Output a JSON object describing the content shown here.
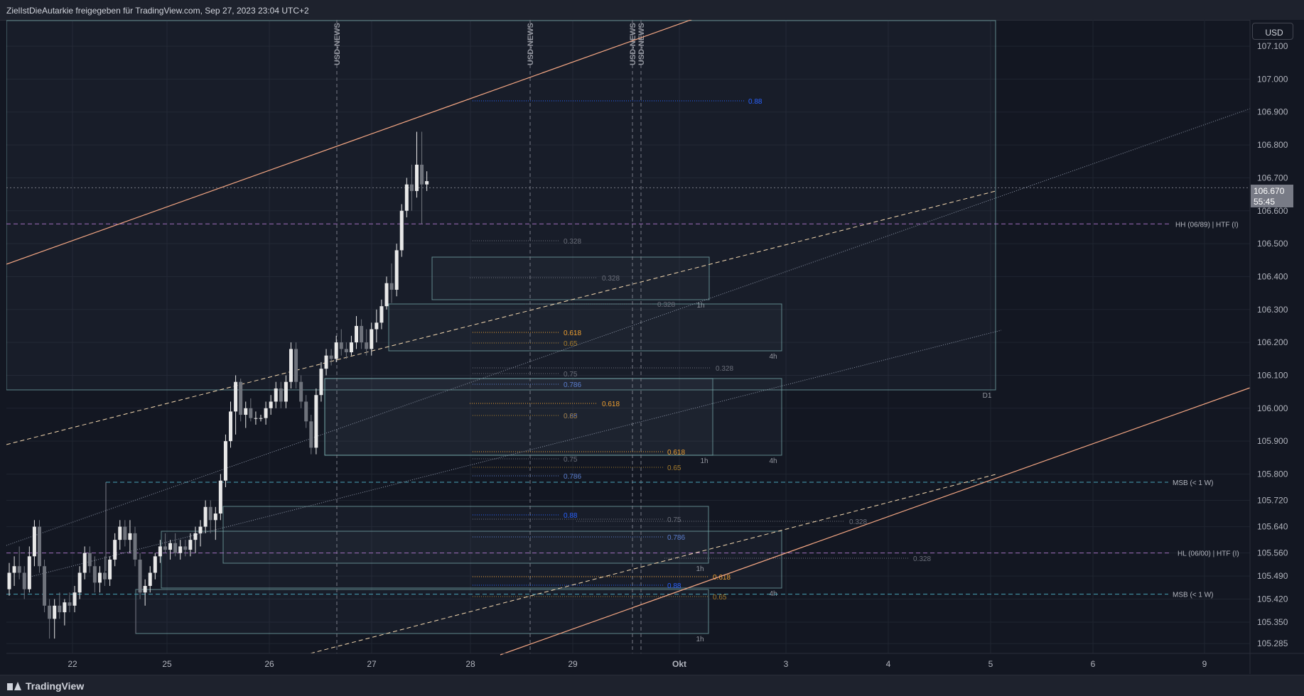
{
  "header": {
    "title": "ZielIstDieAutarkie freigegeben für TradingView.com, Sep 27, 2023 23:04 UTC+2"
  },
  "footer": {
    "brand": "TradingView"
  },
  "currency_button": "USD",
  "last_price": {
    "price": "106.670",
    "countdown": "55:45"
  },
  "colors": {
    "background": "#131722",
    "candle_up": "#e8e8e8",
    "candle_down": "#6f737c",
    "channel": "#f3a683",
    "fib_blue": "#2962ff",
    "fib_orange": "#f0a030",
    "zone": "#7fb6b6",
    "level_pink": "#a26fbf",
    "msb": "#4aa3b8"
  },
  "chart_data": {
    "type": "candlestick",
    "x_ticks": [
      "22",
      "25",
      "26",
      "27",
      "28",
      "29",
      "Okt",
      "3",
      "4",
      "5",
      "6",
      "9"
    ],
    "y_ticks": [
      "107.100",
      "107.000",
      "106.900",
      "106.800",
      "106.700",
      "106.600",
      "106.500",
      "106.400",
      "106.300",
      "106.200",
      "106.100",
      "106.000",
      "105.900",
      "105.800",
      "105.720",
      "105.640",
      "105.560",
      "105.490",
      "105.420",
      "105.350",
      "105.285"
    ],
    "y_range": [
      105.255,
      107.18
    ],
    "news_markers": [
      "USD-NEWS",
      "USD-NEWS",
      "USD-NEWS",
      "USD-NEWS"
    ],
    "horizontal_levels": [
      {
        "label": "HH (06/89) | HTF (I)",
        "price": 106.56
      },
      {
        "label": "HL (06/00) | HTF (I)",
        "price": 105.56
      },
      {
        "label": "MSB (< 1 W)",
        "price": 105.775
      },
      {
        "label": "MSB (< 1 W)",
        "price": 105.435
      }
    ],
    "zone_timeframes": [
      "D1",
      "1h",
      "4h",
      "1h",
      "4h",
      "1h",
      "4h",
      "1h"
    ],
    "fib_labels": [
      "0.88",
      "0.328",
      "0.328",
      "0.328",
      "0.618",
      "0.65",
      "0.328",
      "0.75",
      "0.786",
      "0.618",
      "0.88",
      "0.65",
      "0.618",
      "0.75",
      "0.65",
      "0.786",
      "0.88",
      "0.75",
      "0.328",
      "0.786",
      "0.328",
      "0.618",
      "0.88",
      "0.65"
    ],
    "candles": [
      {
        "o": 105.45,
        "h": 105.53,
        "l": 105.43,
        "c": 105.5
      },
      {
        "o": 105.5,
        "h": 105.55,
        "l": 105.46,
        "c": 105.52
      },
      {
        "o": 105.52,
        "h": 105.58,
        "l": 105.48,
        "c": 105.5
      },
      {
        "o": 105.5,
        "h": 105.52,
        "l": 105.42,
        "c": 105.45
      },
      {
        "o": 105.45,
        "h": 105.58,
        "l": 105.44,
        "c": 105.55
      },
      {
        "o": 105.55,
        "h": 105.66,
        "l": 105.52,
        "c": 105.64
      },
      {
        "o": 105.64,
        "h": 105.66,
        "l": 105.5,
        "c": 105.52
      },
      {
        "o": 105.52,
        "h": 105.54,
        "l": 105.38,
        "c": 105.4
      },
      {
        "o": 105.4,
        "h": 105.42,
        "l": 105.3,
        "c": 105.36
      },
      {
        "o": 105.36,
        "h": 105.42,
        "l": 105.3,
        "c": 105.4
      },
      {
        "o": 105.4,
        "h": 105.44,
        "l": 105.36,
        "c": 105.38
      },
      {
        "o": 105.38,
        "h": 105.42,
        "l": 105.34,
        "c": 105.41
      },
      {
        "o": 105.41,
        "h": 105.44,
        "l": 105.38,
        "c": 105.4
      },
      {
        "o": 105.4,
        "h": 105.46,
        "l": 105.38,
        "c": 105.44
      },
      {
        "o": 105.44,
        "h": 105.52,
        "l": 105.42,
        "c": 105.5
      },
      {
        "o": 105.5,
        "h": 105.58,
        "l": 105.48,
        "c": 105.56
      },
      {
        "o": 105.56,
        "h": 105.58,
        "l": 105.5,
        "c": 105.52
      },
      {
        "o": 105.52,
        "h": 105.55,
        "l": 105.44,
        "c": 105.47
      },
      {
        "o": 105.47,
        "h": 105.52,
        "l": 105.44,
        "c": 105.5
      },
      {
        "o": 105.5,
        "h": 105.55,
        "l": 105.46,
        "c": 105.48
      },
      {
        "o": 105.48,
        "h": 105.55,
        "l": 105.46,
        "c": 105.54
      },
      {
        "o": 105.54,
        "h": 105.62,
        "l": 105.52,
        "c": 105.6
      },
      {
        "o": 105.6,
        "h": 105.66,
        "l": 105.57,
        "c": 105.64
      },
      {
        "o": 105.64,
        "h": 105.66,
        "l": 105.58,
        "c": 105.6
      },
      {
        "o": 105.6,
        "h": 105.66,
        "l": 105.56,
        "c": 105.62
      },
      {
        "o": 105.62,
        "h": 105.64,
        "l": 105.52,
        "c": 105.54
      },
      {
        "o": 105.54,
        "h": 105.56,
        "l": 105.42,
        "c": 105.44
      },
      {
        "o": 105.44,
        "h": 105.48,
        "l": 105.4,
        "c": 105.46
      },
      {
        "o": 105.46,
        "h": 105.52,
        "l": 105.44,
        "c": 105.5
      },
      {
        "o": 105.5,
        "h": 105.56,
        "l": 105.48,
        "c": 105.55
      },
      {
        "o": 105.55,
        "h": 105.6,
        "l": 105.53,
        "c": 105.58
      },
      {
        "o": 105.58,
        "h": 105.62,
        "l": 105.56,
        "c": 105.57
      },
      {
        "o": 105.57,
        "h": 105.6,
        "l": 105.54,
        "c": 105.59
      },
      {
        "o": 105.59,
        "h": 105.62,
        "l": 105.55,
        "c": 105.56
      },
      {
        "o": 105.56,
        "h": 105.6,
        "l": 105.54,
        "c": 105.58
      },
      {
        "o": 105.58,
        "h": 105.6,
        "l": 105.55,
        "c": 105.57
      },
      {
        "o": 105.57,
        "h": 105.62,
        "l": 105.55,
        "c": 105.6
      },
      {
        "o": 105.6,
        "h": 105.64,
        "l": 105.56,
        "c": 105.62
      },
      {
        "o": 105.62,
        "h": 105.66,
        "l": 105.58,
        "c": 105.64
      },
      {
        "o": 105.64,
        "h": 105.72,
        "l": 105.62,
        "c": 105.7
      },
      {
        "o": 105.7,
        "h": 105.72,
        "l": 105.62,
        "c": 105.66
      },
      {
        "o": 105.66,
        "h": 105.7,
        "l": 105.6,
        "c": 105.68
      },
      {
        "o": 105.68,
        "h": 105.8,
        "l": 105.66,
        "c": 105.78
      },
      {
        "o": 105.78,
        "h": 105.92,
        "l": 105.76,
        "c": 105.9
      },
      {
        "o": 105.9,
        "h": 106.02,
        "l": 105.88,
        "c": 105.99
      },
      {
        "o": 105.99,
        "h": 106.1,
        "l": 105.92,
        "c": 106.08
      },
      {
        "o": 106.08,
        "h": 106.09,
        "l": 105.96,
        "c": 105.98
      },
      {
        "o": 105.98,
        "h": 106.02,
        "l": 105.94,
        "c": 106.0
      },
      {
        "o": 106.0,
        "h": 106.03,
        "l": 105.96,
        "c": 105.97
      },
      {
        "o": 105.97,
        "h": 105.99,
        "l": 105.95,
        "c": 105.97
      },
      {
        "o": 105.97,
        "h": 105.98,
        "l": 105.96,
        "c": 105.97
      },
      {
        "o": 105.97,
        "h": 106.02,
        "l": 105.95,
        "c": 106.0
      },
      {
        "o": 106.0,
        "h": 106.04,
        "l": 105.98,
        "c": 106.02
      },
      {
        "o": 106.02,
        "h": 106.08,
        "l": 106.0,
        "c": 106.06
      },
      {
        "o": 106.06,
        "h": 106.08,
        "l": 106.0,
        "c": 106.02
      },
      {
        "o": 106.02,
        "h": 106.1,
        "l": 106.0,
        "c": 106.08
      },
      {
        "o": 106.08,
        "h": 106.2,
        "l": 106.06,
        "c": 106.18
      },
      {
        "o": 106.18,
        "h": 106.2,
        "l": 106.06,
        "c": 106.08
      },
      {
        "o": 106.08,
        "h": 106.1,
        "l": 106.0,
        "c": 106.02
      },
      {
        "o": 106.02,
        "h": 106.04,
        "l": 105.94,
        "c": 105.96
      },
      {
        "o": 105.96,
        "h": 105.98,
        "l": 105.86,
        "c": 105.88
      },
      {
        "o": 105.88,
        "h": 106.06,
        "l": 105.86,
        "c": 106.04
      },
      {
        "o": 106.04,
        "h": 106.14,
        "l": 106.02,
        "c": 106.12
      },
      {
        "o": 106.12,
        "h": 106.18,
        "l": 106.1,
        "c": 106.16
      },
      {
        "o": 106.16,
        "h": 106.18,
        "l": 106.13,
        "c": 106.15
      },
      {
        "o": 106.15,
        "h": 106.22,
        "l": 106.14,
        "c": 106.2
      },
      {
        "o": 106.2,
        "h": 106.24,
        "l": 106.16,
        "c": 106.18
      },
      {
        "o": 106.18,
        "h": 106.2,
        "l": 106.15,
        "c": 106.17
      },
      {
        "o": 106.17,
        "h": 106.22,
        "l": 106.16,
        "c": 106.2
      },
      {
        "o": 106.2,
        "h": 106.28,
        "l": 106.18,
        "c": 106.25
      },
      {
        "o": 106.25,
        "h": 106.27,
        "l": 106.18,
        "c": 106.2
      },
      {
        "o": 106.2,
        "h": 106.24,
        "l": 106.16,
        "c": 106.18
      },
      {
        "o": 106.18,
        "h": 106.26,
        "l": 106.16,
        "c": 106.24
      },
      {
        "o": 106.24,
        "h": 106.3,
        "l": 106.2,
        "c": 106.26
      },
      {
        "o": 106.26,
        "h": 106.33,
        "l": 106.24,
        "c": 106.31
      },
      {
        "o": 106.31,
        "h": 106.4,
        "l": 106.3,
        "c": 106.38
      },
      {
        "o": 106.38,
        "h": 106.44,
        "l": 106.32,
        "c": 106.36
      },
      {
        "o": 106.36,
        "h": 106.5,
        "l": 106.34,
        "c": 106.48
      },
      {
        "o": 106.48,
        "h": 106.62,
        "l": 106.46,
        "c": 106.6
      },
      {
        "o": 106.6,
        "h": 106.7,
        "l": 106.58,
        "c": 106.68
      },
      {
        "o": 106.68,
        "h": 106.74,
        "l": 106.6,
        "c": 106.66
      },
      {
        "o": 106.66,
        "h": 106.84,
        "l": 106.64,
        "c": 106.74
      },
      {
        "o": 106.74,
        "h": 106.84,
        "l": 106.56,
        "c": 106.68
      },
      {
        "o": 106.68,
        "h": 106.72,
        "l": 106.66,
        "c": 106.69
      }
    ]
  }
}
